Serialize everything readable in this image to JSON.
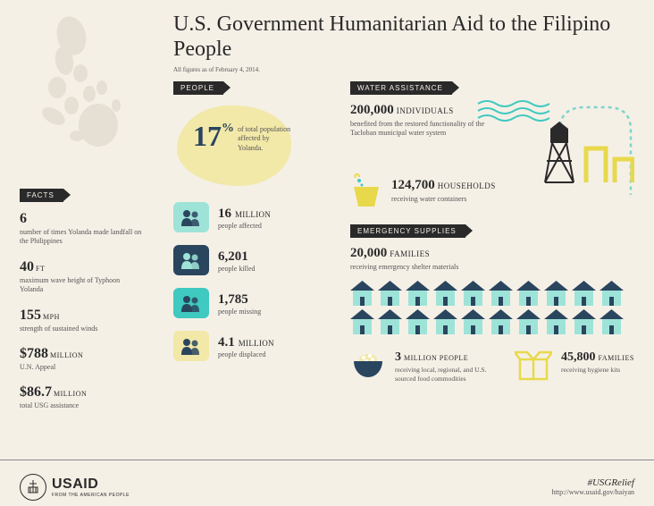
{
  "colors": {
    "bg": "#f5f0e6",
    "ink": "#2a2a2a",
    "muted": "#555555",
    "cream": "#f2e8a8",
    "navy": "#2a455e",
    "teal_light": "#9ee3d8",
    "teal": "#3fc9c0",
    "yellow": "#e8d94c",
    "yellow_dark": "#d4c23a"
  },
  "title": "U.S. Government Humanitarian Aid to the Filipino People",
  "subtitle": "All figures as of February 4, 2014.",
  "facts": {
    "header": "FACTS",
    "items": [
      {
        "big": "6",
        "unit": "",
        "desc": "number of times Yolanda made landfall on the Philippines"
      },
      {
        "big": "40",
        "unit": "FT",
        "desc": "maximum wave height of Typhoon Yolanda"
      },
      {
        "big": "155",
        "unit": "MPH",
        "desc": "strength of sustained winds"
      },
      {
        "big": "$788",
        "unit": "MILLION",
        "desc": "U.N. Appeal"
      },
      {
        "big": "$86.7",
        "unit": "MILLION",
        "desc": "total USG assistance"
      }
    ]
  },
  "people": {
    "header": "PEOPLE",
    "pct": "17",
    "pct_desc": "of total population affected by Yolanda.",
    "stats": [
      {
        "big": "16",
        "unit": "MILLION",
        "desc": "people affected",
        "bg": "#9ee3d8",
        "silhouette": "#2a455e"
      },
      {
        "big": "6,201",
        "unit": "",
        "desc": "people killed",
        "bg": "#2a455e",
        "silhouette": "#9ee3d8"
      },
      {
        "big": "1,785",
        "unit": "",
        "desc": "people missing",
        "bg": "#3fc9c0",
        "silhouette": "#2a455e"
      },
      {
        "big": "4.1",
        "unit": "MILLION",
        "desc": "people displaced",
        "bg": "#f2e8a8",
        "silhouette": "#2a455e"
      }
    ]
  },
  "water": {
    "header": "WATER ASSISTANCE",
    "row1": {
      "num": "200,000",
      "label": "INDIVIDUALS",
      "desc": "benefited from the restored functionality of the Tacloban municipal water system"
    },
    "row2": {
      "num": "124,700",
      "label": "HOUSEHOLDS",
      "desc": "receiving water containers"
    }
  },
  "emergency": {
    "header": "EMERGENCY SUPPLIES",
    "row1": {
      "num": "20,000",
      "label": "FAMILIES",
      "desc": "receiving emergency shelter materials"
    },
    "house_count": 20,
    "house_style": {
      "roof": "#2a455e",
      "body": "#9ee3d8",
      "width": 27,
      "height": 28
    },
    "food": {
      "num": "3",
      "label": "MILLION PEOPLE",
      "desc": "receiving local, regional, and U.S. sourced food commodities"
    },
    "hygiene": {
      "num": "45,800",
      "label": "FAMILIES",
      "desc": "receiving hygiene kits"
    }
  },
  "footer": {
    "logo_main": "USAID",
    "logo_sub": "FROM THE AMERICAN PEOPLE",
    "hashtag": "#USGRelief",
    "url": "http://www.usaid.gov/haiyan"
  }
}
